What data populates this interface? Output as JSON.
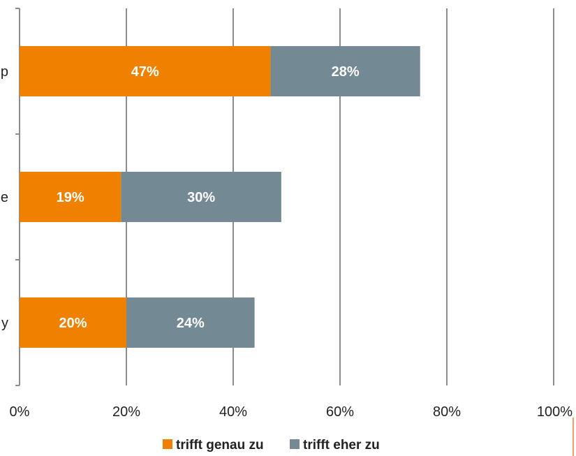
{
  "chart_data": {
    "type": "bar",
    "orientation": "horizontal",
    "stacked": true,
    "categories": [
      "p",
      "e",
      "y"
    ],
    "series": [
      {
        "name": "trifft genau zu",
        "values": [
          47,
          19,
          20
        ],
        "labels": [
          "47%",
          "19%",
          "20%"
        ],
        "color": "#f08000"
      },
      {
        "name": "trifft eher zu",
        "values": [
          28,
          30,
          24
        ],
        "labels": [
          "28%",
          "30%",
          "24%"
        ],
        "color": "#738994"
      }
    ],
    "xlim": [
      0,
      100
    ],
    "xticks": [
      0,
      20,
      40,
      60,
      80,
      100
    ],
    "xtick_labels": [
      "0%",
      "20%",
      "40%",
      "60%",
      "80%",
      "100%"
    ],
    "grid": true,
    "legend_position": "bottom",
    "title": "",
    "xlabel": "",
    "ylabel": ""
  }
}
